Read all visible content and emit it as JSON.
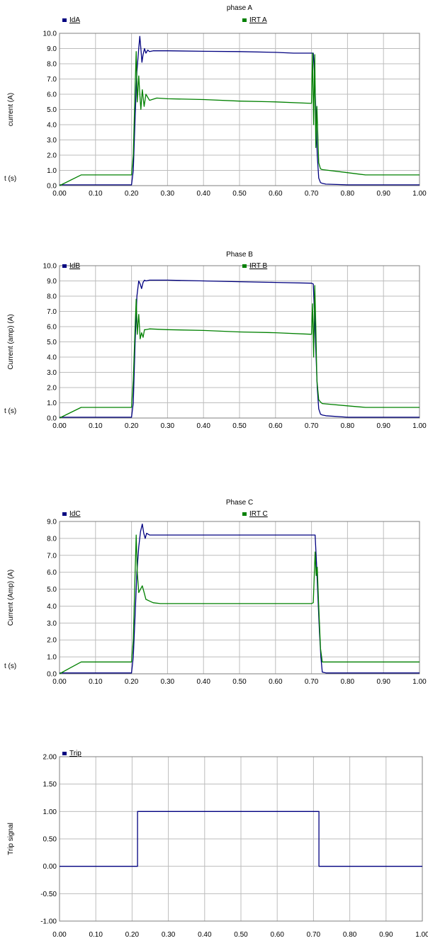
{
  "colors": {
    "blue": "#000080",
    "green": "#008000",
    "grid": "#bdbdbd",
    "frame": "#7f7f7f"
  },
  "chart_data": [
    {
      "type": "line",
      "title": "phase A",
      "xlabel": "t (s)",
      "ylabel": "current (A)",
      "xlim": [
        0,
        1.0
      ],
      "ylim": [
        0,
        10.0
      ],
      "xticks": [
        "0.00",
        "0.10",
        "0.20",
        "0.30",
        "0.40",
        "0.50",
        "0.60",
        "0.70",
        "0.80",
        "0.90",
        "1.00"
      ],
      "yticks": [
        "0.0",
        "1.0",
        "2.0",
        "3.0",
        "4.0",
        "5.0",
        "6.0",
        "7.0",
        "8.0",
        "9.0",
        "10.0"
      ],
      "grid": true,
      "legend": "top",
      "series": [
        {
          "name": "IdA",
          "color": "#000080",
          "x": [
            0,
            0.2,
            0.205,
            0.21,
            0.215,
            0.22,
            0.223,
            0.226,
            0.229,
            0.232,
            0.236,
            0.24,
            0.245,
            0.25,
            0.26,
            0.3,
            0.4,
            0.5,
            0.6,
            0.65,
            0.7,
            0.705,
            0.708,
            0.712,
            0.716,
            0.72,
            0.725,
            0.73,
            0.74,
            0.8,
            1.0
          ],
          "y": [
            0.05,
            0.05,
            1.0,
            4.5,
            7.5,
            9.0,
            9.8,
            9.0,
            8.1,
            8.6,
            9.0,
            8.7,
            8.9,
            8.8,
            8.85,
            8.85,
            8.82,
            8.8,
            8.75,
            8.7,
            8.7,
            8.7,
            7.5,
            5.0,
            2.0,
            0.5,
            0.2,
            0.15,
            0.1,
            0.05,
            0.05
          ]
        },
        {
          "name": "IRT A",
          "color": "#008000",
          "x": [
            0,
            0.03,
            0.06,
            0.2,
            0.205,
            0.21,
            0.213,
            0.216,
            0.22,
            0.223,
            0.226,
            0.23,
            0.235,
            0.24,
            0.25,
            0.27,
            0.3,
            0.4,
            0.5,
            0.6,
            0.7,
            0.703,
            0.706,
            0.709,
            0.712,
            0.715,
            0.72,
            0.725,
            0.73,
            0.8,
            0.85,
            1.0
          ],
          "y": [
            0,
            0.35,
            0.7,
            0.7,
            2.0,
            6.5,
            8.8,
            5.5,
            7.2,
            6.0,
            5.0,
            6.3,
            5.2,
            6.0,
            5.6,
            5.75,
            5.7,
            5.65,
            5.55,
            5.5,
            5.4,
            8.7,
            4.0,
            8.6,
            2.5,
            5.2,
            1.5,
            1.1,
            1.05,
            0.85,
            0.7,
            0.7
          ]
        }
      ]
    },
    {
      "type": "line",
      "title": "Phase B",
      "xlabel": "t (s)",
      "ylabel": "Current (amp) (A)",
      "xlim": [
        0,
        1.0
      ],
      "ylim": [
        0,
        10.0
      ],
      "xticks": [
        "0.00",
        "0.10",
        "0.20",
        "0.30",
        "0.40",
        "0.50",
        "0.60",
        "0.70",
        "0.80",
        "0.90",
        "1.00"
      ],
      "yticks": [
        "0.0",
        "1.0",
        "2.0",
        "3.0",
        "4.0",
        "5.0",
        "6.0",
        "7.0",
        "8.0",
        "9.0",
        "10.0"
      ],
      "grid": true,
      "legend": "top",
      "series": [
        {
          "name": "IdB",
          "color": "#000080",
          "x": [
            0,
            0.2,
            0.205,
            0.21,
            0.215,
            0.22,
            0.224,
            0.228,
            0.232,
            0.236,
            0.24,
            0.25,
            0.3,
            0.4,
            0.5,
            0.6,
            0.7,
            0.705,
            0.708,
            0.712,
            0.716,
            0.72,
            0.725,
            0.73,
            0.74,
            0.8,
            1.0
          ],
          "y": [
            0.05,
            0.05,
            1.0,
            5.0,
            8.0,
            9.0,
            8.8,
            8.5,
            8.9,
            9.05,
            9.0,
            9.05,
            9.05,
            9.0,
            8.95,
            8.9,
            8.85,
            8.8,
            7.0,
            4.5,
            2.0,
            0.6,
            0.25,
            0.2,
            0.15,
            0.05,
            0.05
          ]
        },
        {
          "name": "IRT B",
          "color": "#008000",
          "x": [
            0,
            0.03,
            0.06,
            0.2,
            0.205,
            0.21,
            0.213,
            0.216,
            0.22,
            0.224,
            0.228,
            0.232,
            0.236,
            0.24,
            0.25,
            0.3,
            0.4,
            0.5,
            0.6,
            0.7,
            0.703,
            0.706,
            0.709,
            0.712,
            0.715,
            0.72,
            0.725,
            0.73,
            0.8,
            0.85,
            1.0
          ],
          "y": [
            0,
            0.35,
            0.7,
            0.7,
            2.5,
            6.0,
            7.8,
            5.5,
            6.8,
            5.2,
            5.6,
            5.3,
            5.8,
            5.8,
            5.85,
            5.8,
            5.75,
            5.65,
            5.6,
            5.5,
            7.5,
            4.0,
            8.7,
            6.0,
            2.5,
            1.2,
            1.05,
            0.95,
            0.8,
            0.7,
            0.7
          ]
        }
      ]
    },
    {
      "type": "line",
      "title": "Phase C",
      "xlabel": "t (s)",
      "ylabel": "Current (Amp) (A)",
      "xlim": [
        0,
        1.0
      ],
      "ylim": [
        0,
        9.0
      ],
      "xticks": [
        "0.00",
        "0.10",
        "0.20",
        "0.30",
        "0.40",
        "0.50",
        "0.60",
        "0.70",
        "0.80",
        "0.90",
        "1.00"
      ],
      "yticks": [
        "0.0",
        "1.0",
        "2.0",
        "3.0",
        "4.0",
        "5.0",
        "6.0",
        "7.0",
        "8.0",
        "9.0"
      ],
      "grid": true,
      "legend": "top",
      "series": [
        {
          "name": "IdC",
          "color": "#000080",
          "x": [
            0,
            0.2,
            0.205,
            0.21,
            0.215,
            0.22,
            0.225,
            0.23,
            0.234,
            0.238,
            0.242,
            0.25,
            0.3,
            0.4,
            0.5,
            0.6,
            0.7,
            0.71,
            0.714,
            0.718,
            0.722,
            0.726,
            0.73,
            0.74,
            1.0
          ],
          "y": [
            0.05,
            0.05,
            1.0,
            3.5,
            6.0,
            7.5,
            8.4,
            8.85,
            8.3,
            8.0,
            8.3,
            8.2,
            8.2,
            8.2,
            8.2,
            8.2,
            8.2,
            8.2,
            6.5,
            4.5,
            2.5,
            1.0,
            0.1,
            0.05,
            0.05
          ]
        },
        {
          "name": "IRT C",
          "color": "#008000",
          "x": [
            0,
            0.03,
            0.06,
            0.2,
            0.205,
            0.21,
            0.213,
            0.216,
            0.22,
            0.225,
            0.23,
            0.235,
            0.24,
            0.25,
            0.26,
            0.28,
            0.3,
            0.5,
            0.7,
            0.705,
            0.71,
            0.713,
            0.716,
            0.719,
            0.722,
            0.725,
            0.73,
            0.8,
            1.0
          ],
          "y": [
            0,
            0.35,
            0.7,
            0.7,
            2.0,
            6.0,
            8.2,
            6.0,
            4.8,
            5.0,
            5.2,
            4.8,
            4.4,
            4.3,
            4.2,
            4.15,
            4.15,
            4.15,
            4.15,
            4.2,
            7.2,
            5.8,
            6.3,
            4.5,
            3.0,
            1.5,
            0.7,
            0.7,
            0.7
          ]
        }
      ]
    },
    {
      "type": "line",
      "title": "",
      "xlabel": "",
      "ylabel": "Trip signal",
      "xlim": [
        0,
        1.0
      ],
      "ylim": [
        -1.0,
        2.0
      ],
      "xticks": [
        "0.00",
        "0.10",
        "0.20",
        "0.30",
        "0.40",
        "0.50",
        "0.60",
        "0.70",
        "0.80",
        "0.90",
        "1.00"
      ],
      "yticks": [
        "-1.00",
        "-0.50",
        "0.00",
        "0.50",
        "1.00",
        "1.50",
        "2.00"
      ],
      "grid": true,
      "legend": "top-left",
      "series": [
        {
          "name": "Trip",
          "color": "#000080",
          "x": [
            0,
            0.215,
            0.215,
            0.715,
            0.715,
            1.0
          ],
          "y": [
            0,
            0,
            1.0,
            1.0,
            0,
            0
          ]
        }
      ]
    }
  ]
}
